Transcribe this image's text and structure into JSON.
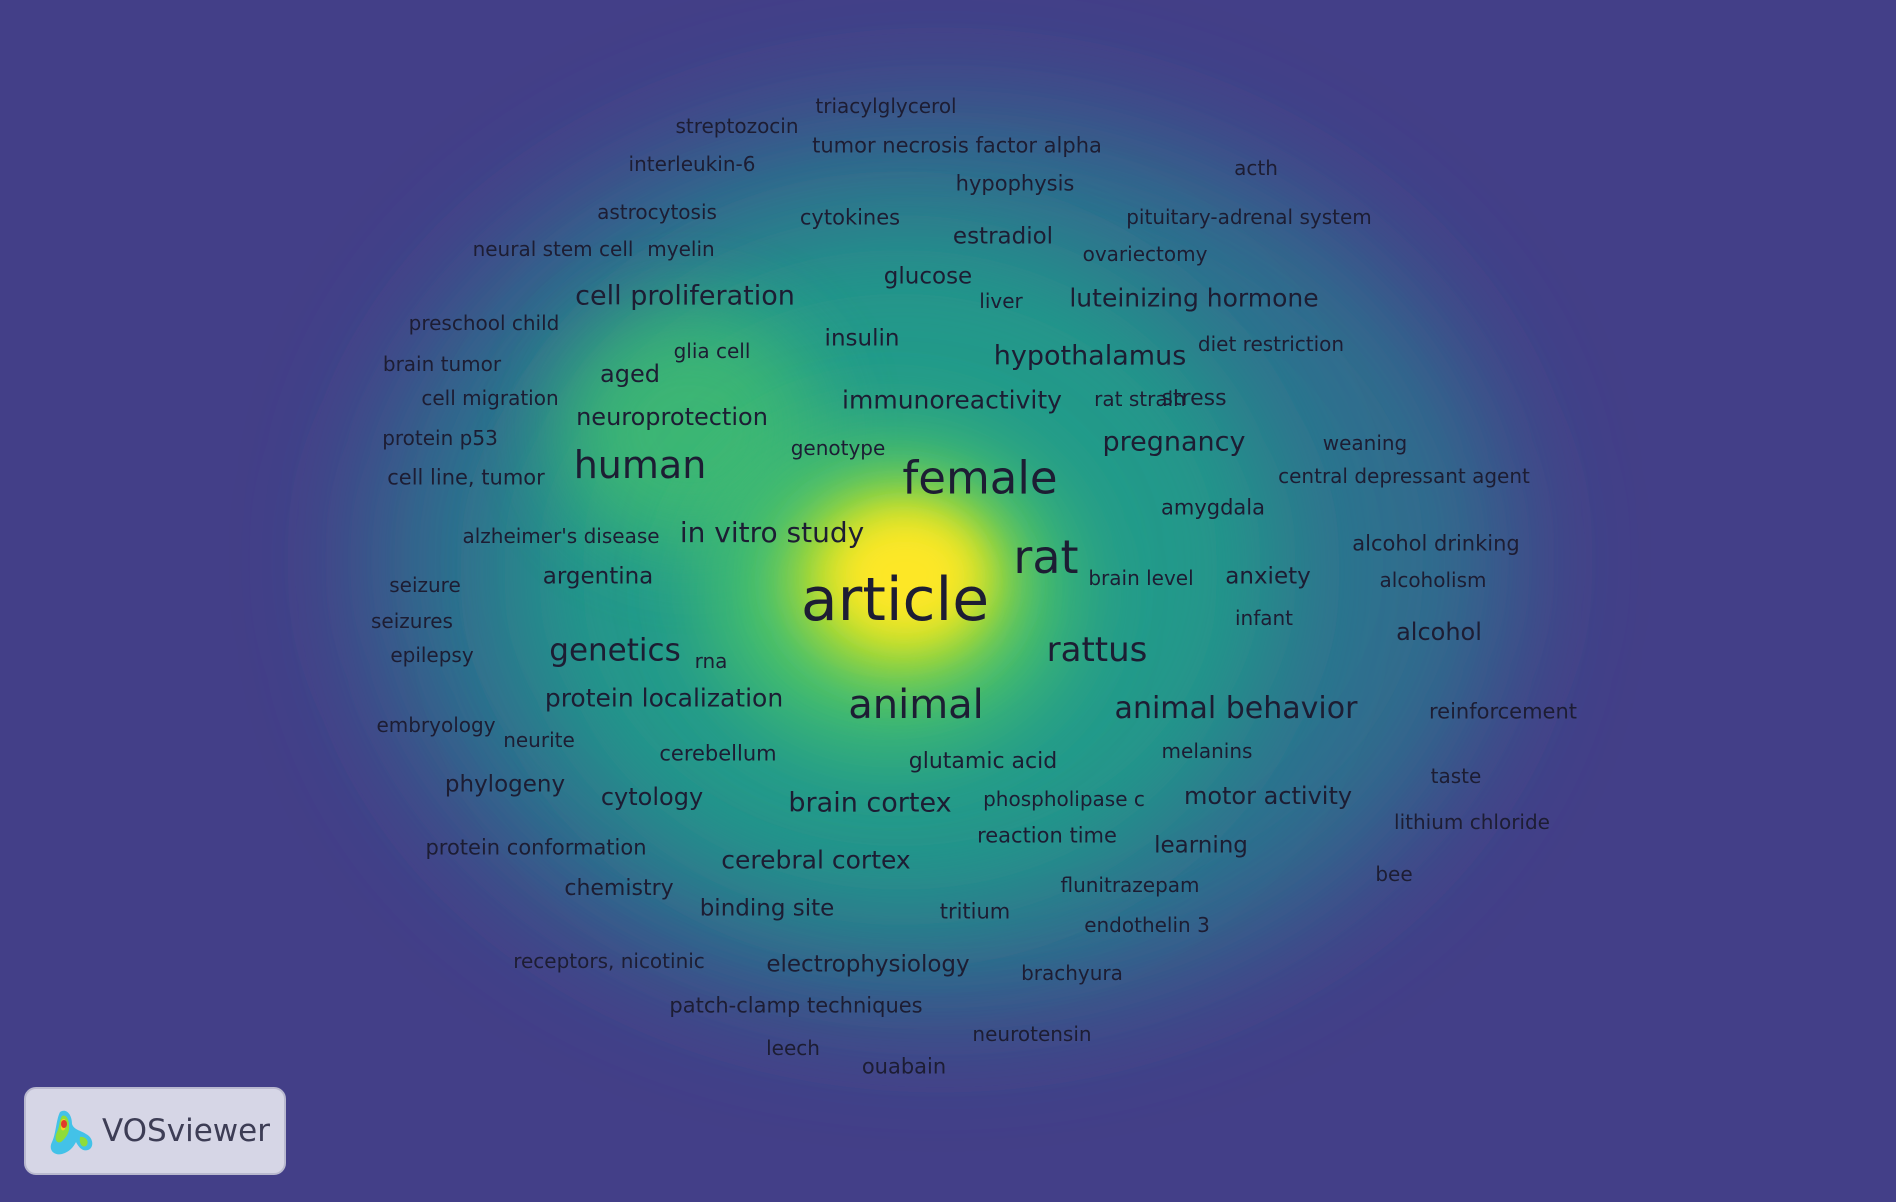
{
  "app": {
    "logo_text": "VOSviewer",
    "logo_icon": "vosviewer-logo-icon"
  },
  "colors": {
    "background": "#433f88",
    "label": "#1d1d33",
    "density_scale": [
      "#433f88",
      "#2f6f8e",
      "#229a8a",
      "#45c06d",
      "#b9de2b",
      "#fde725"
    ]
  },
  "keywords": [
    {
      "label": "article",
      "weight": 100
    },
    {
      "label": "rat",
      "weight": 72
    },
    {
      "label": "female",
      "weight": 70
    },
    {
      "label": "animal",
      "weight": 60
    },
    {
      "label": "human",
      "weight": 56
    },
    {
      "label": "rattus",
      "weight": 48
    },
    {
      "label": "genetics",
      "weight": 42
    },
    {
      "label": "animal behavior",
      "weight": 40
    },
    {
      "label": "in vitro study",
      "weight": 36
    },
    {
      "label": "pregnancy",
      "weight": 34
    },
    {
      "label": "hypothalamus",
      "weight": 34
    },
    {
      "label": "cell proliferation",
      "weight": 34
    },
    {
      "label": "brain cortex",
      "weight": 34
    },
    {
      "label": "immunoreactivity",
      "weight": 30
    },
    {
      "label": "luteinizing hormone",
      "weight": 30
    },
    {
      "label": "cerebral cortex",
      "weight": 30
    },
    {
      "label": "protein localization",
      "weight": 30
    },
    {
      "label": "aged",
      "weight": 28
    },
    {
      "label": "neuroprotection",
      "weight": 28
    },
    {
      "label": "cytology",
      "weight": 28
    },
    {
      "label": "motor activity",
      "weight": 28
    },
    {
      "label": "alcohol",
      "weight": 28
    },
    {
      "label": "argentina",
      "weight": 26
    },
    {
      "label": "insulin",
      "weight": 26
    },
    {
      "label": "glucose",
      "weight": 26
    },
    {
      "label": "estradiol",
      "weight": 26
    },
    {
      "label": "learning",
      "weight": 26
    },
    {
      "label": "phylogeny",
      "weight": 26
    },
    {
      "label": "anxiety",
      "weight": 26
    },
    {
      "label": "binding site",
      "weight": 26
    },
    {
      "label": "electrophysiology",
      "weight": 26
    },
    {
      "label": "glutamic acid",
      "weight": 24
    },
    {
      "label": "chemistry",
      "weight": 24
    },
    {
      "label": "stress",
      "weight": 24
    },
    {
      "label": "cytokines",
      "weight": 22
    },
    {
      "label": "hypophysis",
      "weight": 22
    },
    {
      "label": "tumor necrosis factor alpha",
      "weight": 22
    },
    {
      "label": "alcohol drinking",
      "weight": 22
    },
    {
      "label": "reinforcement",
      "weight": 22
    },
    {
      "label": "protein conformation",
      "weight": 22
    },
    {
      "label": "patch-clamp techniques",
      "weight": 22
    },
    {
      "label": "ouabain",
      "weight": 22
    },
    {
      "label": "cerebellum",
      "weight": 22
    },
    {
      "label": "reaction time",
      "weight": 22
    },
    {
      "label": "tritium",
      "weight": 22
    },
    {
      "label": "amygdala",
      "weight": 22
    },
    {
      "label": "cell line, tumor",
      "weight": 22
    },
    {
      "label": "genotype",
      "weight": 20
    },
    {
      "label": "taste",
      "weight": 20
    },
    {
      "label": "infant",
      "weight": 20
    },
    {
      "label": "brain level",
      "weight": 20
    },
    {
      "label": "ovariectomy",
      "weight": 20
    },
    {
      "label": "interleukin-6",
      "weight": 20
    },
    {
      "label": "streptozocin",
      "weight": 20
    },
    {
      "label": "triacylglycerol",
      "weight": 20
    },
    {
      "label": "astrocytosis",
      "weight": 20
    },
    {
      "label": "pituitary-adrenal system",
      "weight": 20
    },
    {
      "label": "acth",
      "weight": 20
    },
    {
      "label": "diet restriction",
      "weight": 20
    },
    {
      "label": "rat strain",
      "weight": 20
    },
    {
      "label": "weaning",
      "weight": 20
    },
    {
      "label": "central depressant agent",
      "weight": 20
    },
    {
      "label": "alcoholism",
      "weight": 20
    },
    {
      "label": "lithium chloride",
      "weight": 20
    },
    {
      "label": "bee",
      "weight": 20
    },
    {
      "label": "melanins",
      "weight": 20
    },
    {
      "label": "phospholipase c",
      "weight": 20
    },
    {
      "label": "flunitrazepam",
      "weight": 20
    },
    {
      "label": "endothelin 3",
      "weight": 20
    },
    {
      "label": "brachyura",
      "weight": 20
    },
    {
      "label": "neurotensin",
      "weight": 20
    },
    {
      "label": "leech",
      "weight": 20
    },
    {
      "label": "receptors, nicotinic",
      "weight": 20
    },
    {
      "label": "embryology",
      "weight": 20
    },
    {
      "label": "neurite",
      "weight": 20
    },
    {
      "label": "rna",
      "weight": 20
    },
    {
      "label": "epilepsy",
      "weight": 20
    },
    {
      "label": "seizures",
      "weight": 20
    },
    {
      "label": "seizure",
      "weight": 20
    },
    {
      "label": "alzheimer's disease",
      "weight": 20
    },
    {
      "label": "protein p53",
      "weight": 20
    },
    {
      "label": "cell migration",
      "weight": 20
    },
    {
      "label": "brain tumor",
      "weight": 20
    },
    {
      "label": "preschool child",
      "weight": 20
    },
    {
      "label": "glia cell",
      "weight": 20
    },
    {
      "label": "liver",
      "weight": 20
    },
    {
      "label": "neural stem cell",
      "weight": 20
    },
    {
      "label": "myelin",
      "weight": 20
    }
  ]
}
